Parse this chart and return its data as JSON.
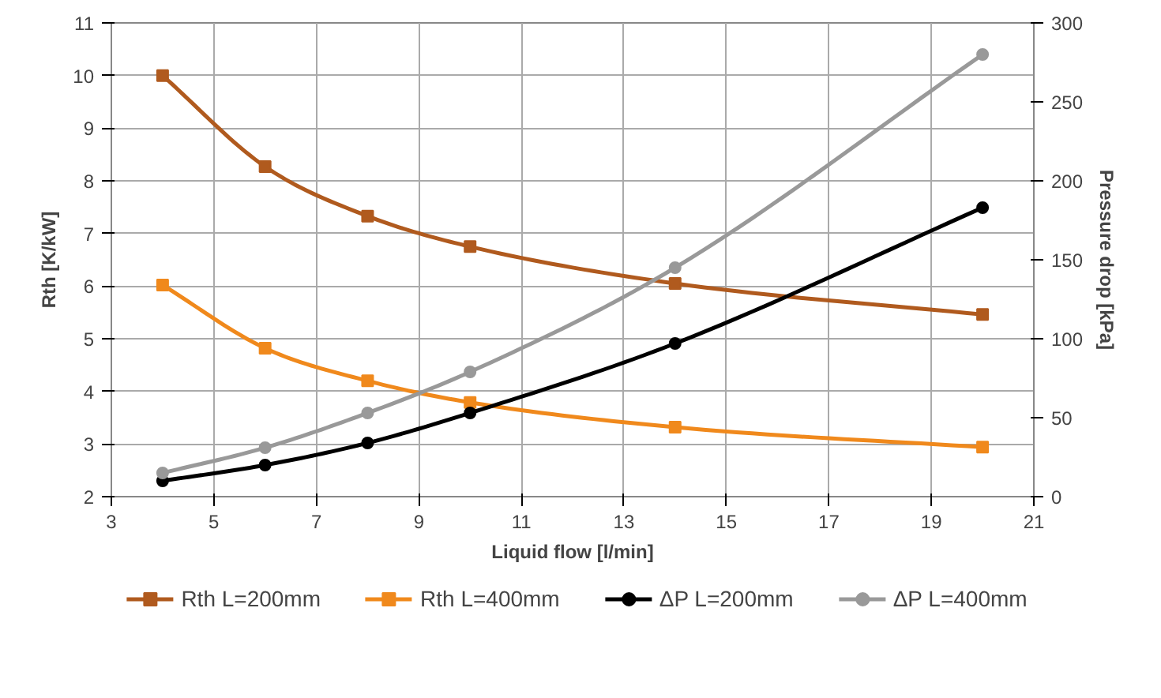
{
  "chart_data": {
    "type": "line",
    "xlabel": "Liquid flow [l/min]",
    "ylabel": "Rth [K/kW]",
    "y2label": "Pressure drop [kPa]",
    "x": [
      4,
      6,
      8,
      10,
      14,
      20
    ],
    "xlim": [
      3,
      21
    ],
    "xticks": [
      3,
      5,
      7,
      9,
      11,
      13,
      15,
      17,
      19,
      21
    ],
    "ylim": [
      2,
      11
    ],
    "yticks": [
      2,
      3,
      4,
      5,
      6,
      7,
      8,
      9,
      10,
      11
    ],
    "y2lim": [
      0,
      300
    ],
    "y2ticks": [
      0,
      50,
      100,
      150,
      200,
      250,
      300
    ],
    "grid": true,
    "legend": "bottom",
    "series": [
      {
        "name": "Rth L=200mm",
        "color": "#b05a1e",
        "marker": "square",
        "values": [
          10.0,
          8.27,
          7.33,
          6.75,
          6.05,
          5.46
        ]
      },
      {
        "name": "Rth L=400mm",
        "color": "#f0891c",
        "marker": "square",
        "values": [
          6.02,
          4.82,
          4.2,
          3.79,
          3.32,
          2.94
        ]
      },
      {
        "name": "ΔP L=200mm",
        "color": "#000000",
        "marker": "circle",
        "axis": "y2",
        "values": [
          10,
          20,
          34,
          53,
          97,
          183
        ]
      },
      {
        "name": "ΔP L=400mm",
        "color": "#999999",
        "marker": "circle",
        "axis": "y2",
        "values": [
          15,
          31,
          53,
          79,
          145,
          280
        ]
      }
    ]
  }
}
